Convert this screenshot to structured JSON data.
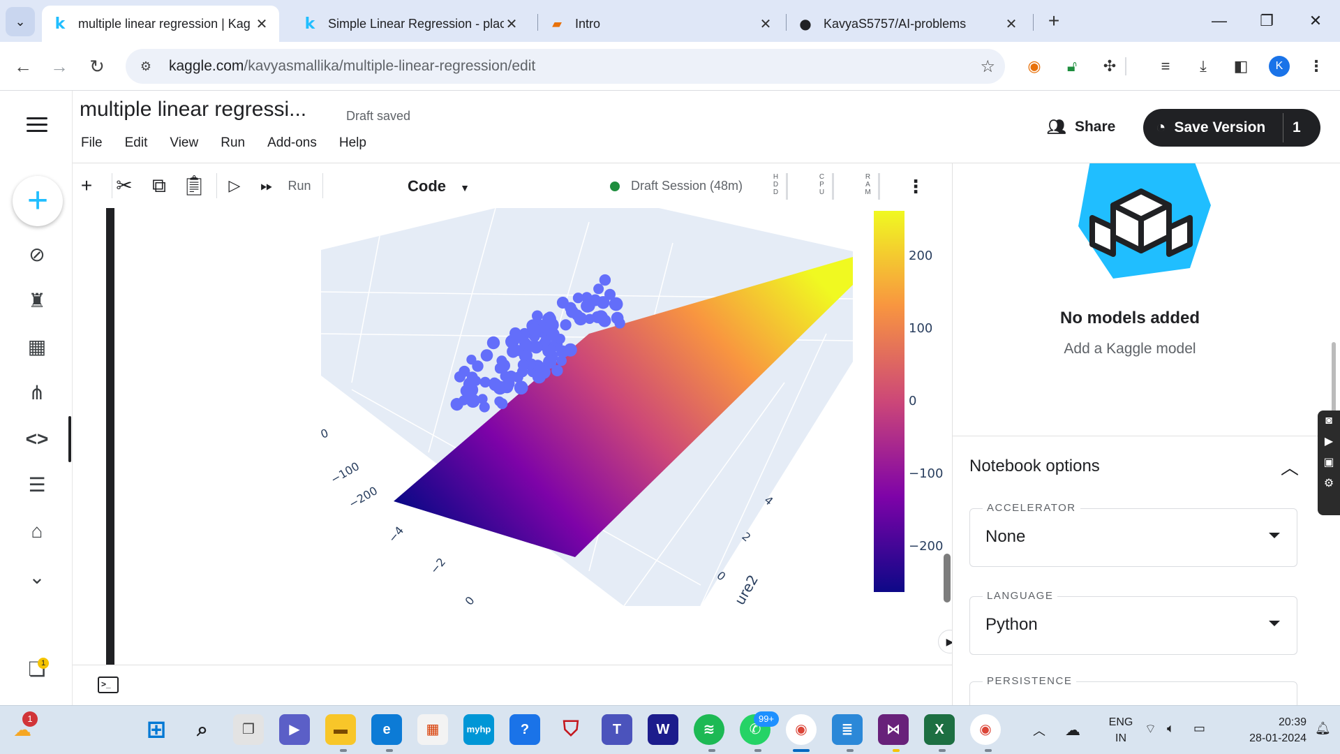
{
  "browser": {
    "tabs": [
      {
        "title": "multiple linear regression | Kag",
        "favicon": "kaggle-k",
        "active": true
      },
      {
        "title": "Simple Linear Regression - plac",
        "favicon": "kaggle-k",
        "active": false
      },
      {
        "title": "Intro",
        "favicon": "book",
        "active": false
      },
      {
        "title": "KavyaS5757/AI-problems",
        "favicon": "github",
        "active": false
      }
    ],
    "url_host": "kaggle.com",
    "url_path": "/kavyasmallika/multiple-linear-regression/edit",
    "profile_initial": "K"
  },
  "notebook": {
    "title": "multiple linear regressi...",
    "status": "Draft saved",
    "menu": [
      "File",
      "Edit",
      "View",
      "Run",
      "Add-ons",
      "Help"
    ],
    "share_label": "Share",
    "save_label": "Save Version",
    "version_count": "1"
  },
  "toolbar": {
    "run_all_label": "Run All",
    "cell_type": "Code",
    "session_label": "Draft Session (48m)",
    "meters": [
      "HDD",
      "CPU",
      "RAM"
    ]
  },
  "plot": {
    "colorbar_ticks": [
      "200",
      "100",
      "0",
      "−100",
      "−200"
    ],
    "axis_x_ticks": [
      "−4",
      "−2",
      "0"
    ],
    "axis_y_ticks": [
      "4",
      "2",
      "0"
    ],
    "axis_z_ticks": [
      "0",
      "−100",
      "−200"
    ],
    "axis_y_title_fragment": "ure2",
    "colors": {
      "point": "#636efa",
      "scale_low": "#0d0887",
      "scale_mid": "#cc4778",
      "scale_high": "#f0f921",
      "scene_bg": "#e5ecf6"
    }
  },
  "models_panel": {
    "title": "No models added",
    "subtitle": "Add a Kaggle model"
  },
  "options": {
    "header": "Notebook options",
    "accelerator_label": "ACCELERATOR",
    "accelerator_value": "None",
    "language_label": "LANGUAGE",
    "language_value": "Python",
    "persistence_label": "PERSISTENCE"
  },
  "taskbar": {
    "language_line1": "ENG",
    "language_line2": "IN",
    "time": "20:39",
    "date": "28-01-2024",
    "whatsapp_badge": "99+",
    "weather_badge": "1",
    "nav_badge": "1"
  }
}
